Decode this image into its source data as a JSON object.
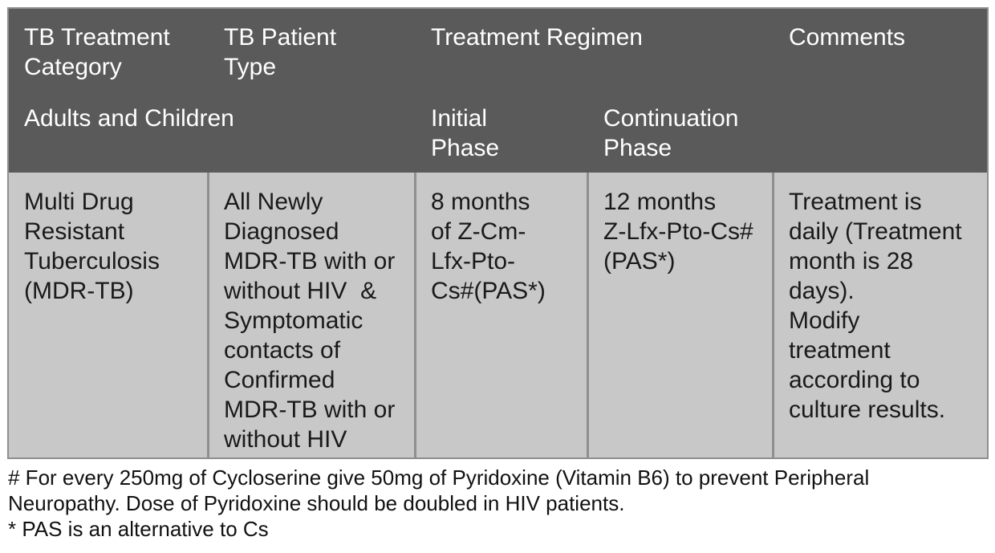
{
  "header": {
    "category": [
      "TB Treatment",
      "Category"
    ],
    "patient_type": [
      "TB Patient",
      "Type"
    ],
    "regimen": "Treatment Regimen",
    "comments": "Comments",
    "group": "Adults and Children",
    "initial_phase": [
      "Initial",
      "Phase"
    ],
    "continuation_phase": [
      "Continuation",
      "Phase"
    ]
  },
  "row": {
    "category": [
      "Multi Drug",
      "Resistant",
      "Tuberculosis",
      "(MDR-TB)"
    ],
    "patient_type": [
      "All Newly",
      "Diagnosed",
      "MDR-TB with or",
      "without HIV  &",
      "Symptomatic",
      "contacts of",
      "Confirmed",
      "MDR-TB with or",
      "without HIV"
    ],
    "initial_phase": [
      "8 months",
      "of Z-Cm-",
      "Lfx-Pto-",
      "Cs#(PAS*)"
    ],
    "continuation_phase": [
      "12 months",
      "Z-Lfx-Pto-Cs#",
      "(PAS*)"
    ],
    "comments": [
      "Treatment is",
      "daily (Treatment",
      "month is 28",
      "days).",
      "Modify",
      "treatment",
      "according to",
      "culture results."
    ]
  },
  "footnotes": [
    "# For every 250mg of Cycloserine give 50mg of Pyridoxine (Vitamin B6) to prevent Peripheral",
    "Neuropathy. Dose of Pyridoxine should be doubled in HIV patients.",
    "* PAS is an alternative to Cs"
  ],
  "colors": {
    "header_bg": "#5a5a5a",
    "body_bg": "#c8c8c8",
    "border": "#8f8f8f",
    "header_text": "#ffffff",
    "body_text": "#1a1a1a"
  }
}
